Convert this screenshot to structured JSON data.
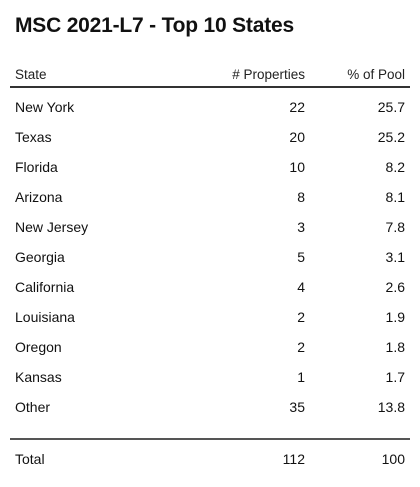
{
  "title": "MSC 2021-L7 - Top 10 States",
  "chart_data": {
    "type": "table",
    "title": "MSC 2021-L7 - Top 10 States",
    "columns": [
      "State",
      "# Properties",
      "% of Pool"
    ],
    "rows": [
      {
        "state": "New York",
        "properties": "22",
        "pool": "25.7"
      },
      {
        "state": "Texas",
        "properties": "20",
        "pool": "25.2"
      },
      {
        "state": "Florida",
        "properties": "10",
        "pool": "8.2"
      },
      {
        "state": "Arizona",
        "properties": "8",
        "pool": "8.1"
      },
      {
        "state": "New Jersey",
        "properties": "3",
        "pool": "7.8"
      },
      {
        "state": "Georgia",
        "properties": "5",
        "pool": "3.1"
      },
      {
        "state": "California",
        "properties": "4",
        "pool": "2.6"
      },
      {
        "state": "Louisiana",
        "properties": "2",
        "pool": "1.9"
      },
      {
        "state": "Oregon",
        "properties": "2",
        "pool": "1.8"
      },
      {
        "state": "Kansas",
        "properties": "1",
        "pool": "1.7"
      },
      {
        "state": "Other",
        "properties": "35",
        "pool": "13.8"
      }
    ],
    "total": {
      "label": "Total",
      "properties": "112",
      "pool": "100"
    }
  }
}
